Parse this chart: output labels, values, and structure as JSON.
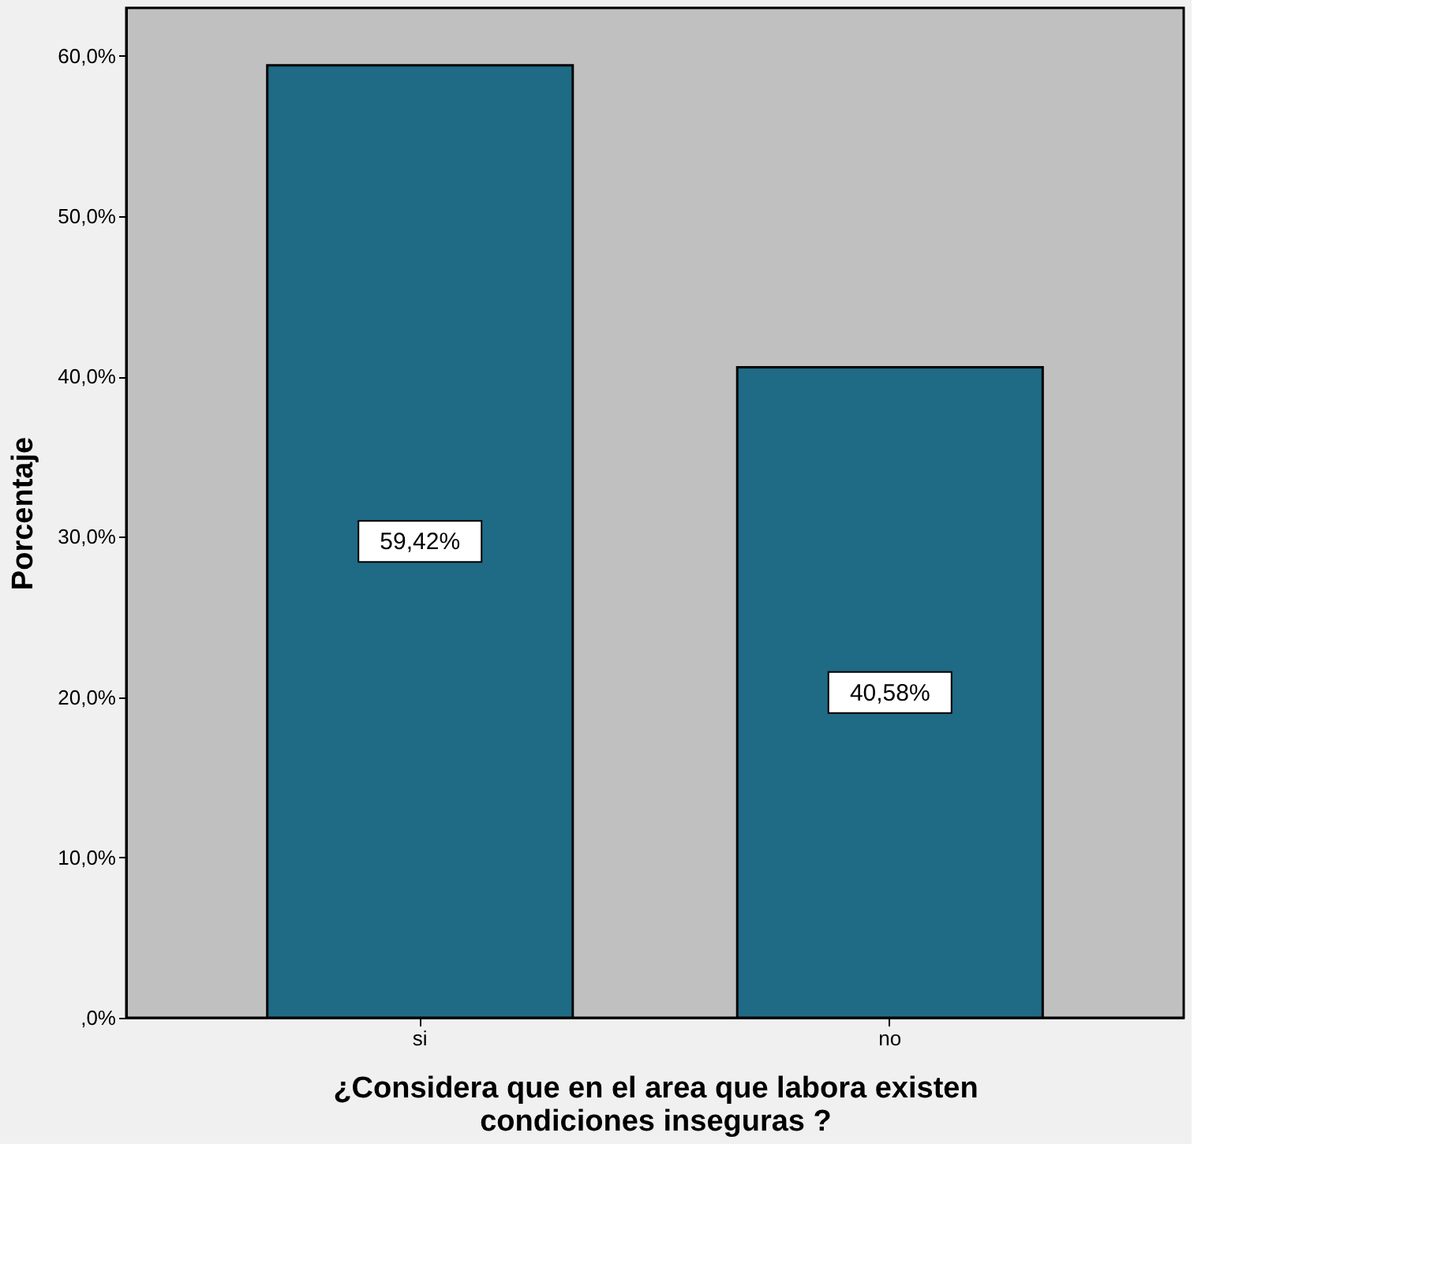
{
  "chart_data": {
    "type": "bar",
    "categories": [
      "si",
      "no"
    ],
    "values": [
      59.42,
      40.58
    ],
    "color": "#1f6a85",
    "value_labels": [
      "59,42%",
      "40,58%"
    ],
    "xlabel": "¿Considera que en el area  que labora existen condiciones inseguras ?",
    "ylabel": "Porcentaje",
    "ylim": [
      0,
      63
    ],
    "yticks": [
      {
        "value": 0,
        "label": ",0%"
      },
      {
        "value": 10,
        "label": "10,0%"
      },
      {
        "value": 20,
        "label": "20,0%"
      },
      {
        "value": 30,
        "label": "30,0%"
      },
      {
        "value": 40,
        "label": "40,0%"
      },
      {
        "value": 50,
        "label": "50,0%"
      },
      {
        "value": 60,
        "label": "60,0%"
      }
    ],
    "grid": false
  }
}
